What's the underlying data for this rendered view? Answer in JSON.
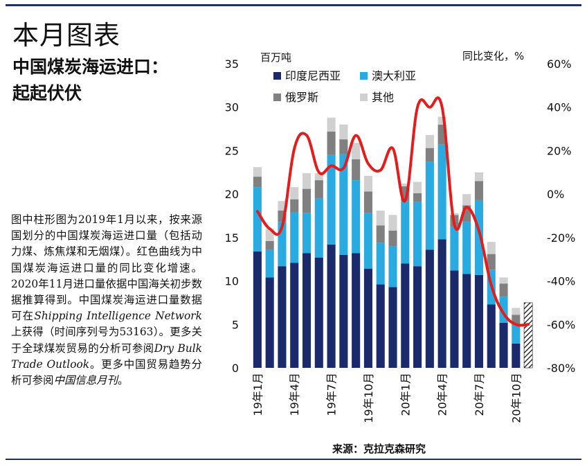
{
  "page": {
    "section_title": "本月图表",
    "chart_title_line1": "中国煤炭海运进口：",
    "chart_title_line2": "起起伏伏",
    "description": {
      "t1": "图中柱形图为2019年1月以来，按来源国划分的中国煤炭海运进口量（包括动力煤、炼焦煤和无烟煤）。红色曲线为中国煤炭海运进口量的同比变化增速。2020年11月进口量依据中国海关初步数据推算得到。中国煤炭海运进口量数据可在",
      "i1": "Shipping Intelligence Network",
      "t2": "上获得（时间序列号为53163）。更多关于全球煤炭贸易的分析可参阅",
      "i2": "Dry Bulk Trade Outlook",
      "t3": "。更多中国贸易趋势分析可参阅",
      "i3": "中国信息月刊",
      "t4": "。"
    },
    "source": "来源：克拉克森研究"
  },
  "chart_data": {
    "type": "bar",
    "stacked": true,
    "left_axis_unit": "百万吨",
    "right_axis_unit": "同比变化，%",
    "ylim": [
      0,
      35
    ],
    "yticks": [
      0,
      5,
      10,
      15,
      20,
      25,
      30,
      35
    ],
    "y2lim": [
      -80,
      60
    ],
    "y2ticks": [
      "-80%",
      "-60%",
      "-40%",
      "-20%",
      "0%",
      "20%",
      "40%",
      "60%"
    ],
    "y2tick_values": [
      -80,
      -60,
      -40,
      -20,
      0,
      20,
      40,
      60
    ],
    "x_tick_labels": [
      {
        "index": 0,
        "label": "19年1月"
      },
      {
        "index": 3,
        "label": "19年4月"
      },
      {
        "index": 6,
        "label": "19年7月"
      },
      {
        "index": 9,
        "label": "19年10月"
      },
      {
        "index": 12,
        "label": "20年1月"
      },
      {
        "index": 15,
        "label": "20年4月"
      },
      {
        "index": 18,
        "label": "20年7月"
      },
      {
        "index": 21,
        "label": "20年10月"
      }
    ],
    "categories": [
      "2019-01",
      "2019-02",
      "2019-03",
      "2019-04",
      "2019-05",
      "2019-06",
      "2019-07",
      "2019-08",
      "2019-09",
      "2019-10",
      "2019-11",
      "2019-12",
      "2020-01",
      "2020-02",
      "2020-03",
      "2020-04",
      "2020-05",
      "2020-06",
      "2020-07",
      "2020-08",
      "2020-09",
      "2020-10",
      "2020-11"
    ],
    "series": [
      {
        "name": "印度尼西亚",
        "color": "#1b2a6b",
        "values": [
          13.4,
          10.4,
          11.7,
          12.1,
          13.2,
          12.7,
          14.2,
          13.0,
          13.2,
          11.4,
          9.6,
          9.3,
          12.0,
          11.7,
          13.6,
          14.8,
          11.2,
          10.8,
          10.7,
          7.3,
          5.2,
          2.8,
          7.5
        ]
      },
      {
        "name": "澳大利亚",
        "color": "#29abe2",
        "values": [
          7.4,
          3.2,
          5.1,
          5.8,
          4.6,
          6.8,
          10.3,
          11.6,
          8.4,
          6.4,
          4.8,
          4.7,
          7.2,
          7.4,
          10.1,
          10.9,
          5.0,
          6.0,
          8.6,
          4.0,
          3.0,
          2.1,
          0
        ]
      },
      {
        "name": "俄罗斯",
        "color": "#808080",
        "values": [
          1.2,
          1.0,
          1.3,
          1.5,
          2.8,
          2.1,
          2.7,
          1.7,
          2.4,
          2.5,
          2.0,
          1.8,
          1.7,
          1.0,
          1.6,
          2.3,
          1.4,
          1.9,
          2.2,
          1.8,
          1.5,
          1.2,
          0
        ]
      },
      {
        "name": "其他",
        "color": "#d0d0d0",
        "values": [
          1.1,
          1.4,
          1.1,
          1.4,
          1.8,
          0.8,
          1.6,
          1.7,
          1.9,
          1.8,
          1.7,
          1.8,
          0.3,
          1.3,
          1.5,
          0.9,
          0.2,
          1.3,
          1.0,
          1.4,
          0.7,
          0.8,
          0
        ]
      }
    ],
    "estimated_bar_index": 22,
    "estimated_bar_note": "hatched",
    "line_series": {
      "name": "同比变化",
      "axis": "right",
      "color": "#e41c1c",
      "values": [
        -8,
        -16,
        -15,
        21,
        27,
        10,
        13,
        12,
        27,
        14,
        11,
        21,
        -3,
        40,
        40,
        40,
        -14,
        -6,
        -17,
        -42,
        -55,
        -60,
        -60
      ]
    },
    "legend": [
      "印度尼西亚",
      "澳大利亚",
      "俄罗斯",
      "其他"
    ],
    "legend_position": "top-left",
    "grid": false
  }
}
